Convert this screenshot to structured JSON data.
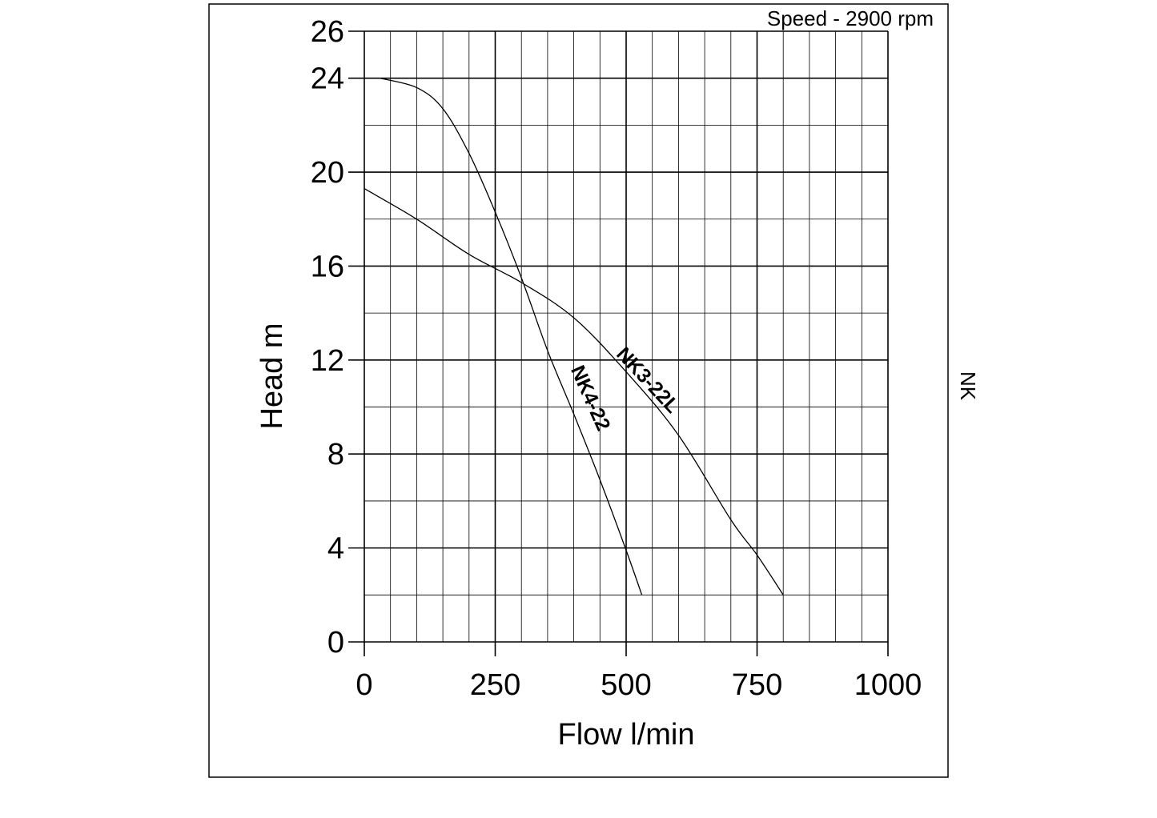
{
  "header": {
    "speed_label": "Speed - 2900 rpm"
  },
  "side_label": "NK",
  "chart_data": {
    "type": "line",
    "xlabel": "Flow l/min",
    "ylabel": "Head m",
    "xlim": [
      0,
      1000
    ],
    "ylim": [
      0,
      26
    ],
    "x_ticks": [
      0,
      250,
      500,
      750,
      1000
    ],
    "x_tick_labels": [
      "0",
      "250",
      "500",
      "750",
      "1000"
    ],
    "y_ticks": [
      0,
      4,
      8,
      12,
      16,
      20,
      24,
      26
    ],
    "y_tick_labels": [
      "0",
      "4",
      "8",
      "12",
      "16",
      "20",
      "24",
      "26"
    ],
    "grid": true,
    "minor_grid": {
      "x_step": 50,
      "y_step": 2
    },
    "colors": {
      "line": "#000000",
      "grid": "#000000",
      "background": "#ffffff"
    },
    "series": [
      {
        "name": "NK4-22",
        "x": [
          30,
          100,
          150,
          200,
          250,
          300,
          350,
          400,
          450,
          500,
          530
        ],
        "y": [
          24,
          23.6,
          22.7,
          20.8,
          18.3,
          15.5,
          12.4,
          9.7,
          6.9,
          3.9,
          2
        ]
      },
      {
        "name": "NK3-22L",
        "x": [
          0,
          100,
          200,
          300,
          400,
          500,
          600,
          700,
          750,
          800
        ],
        "y": [
          19.3,
          18,
          16.5,
          15.3,
          13.8,
          11.5,
          8.8,
          5.2,
          3.7,
          2
        ]
      }
    ]
  }
}
